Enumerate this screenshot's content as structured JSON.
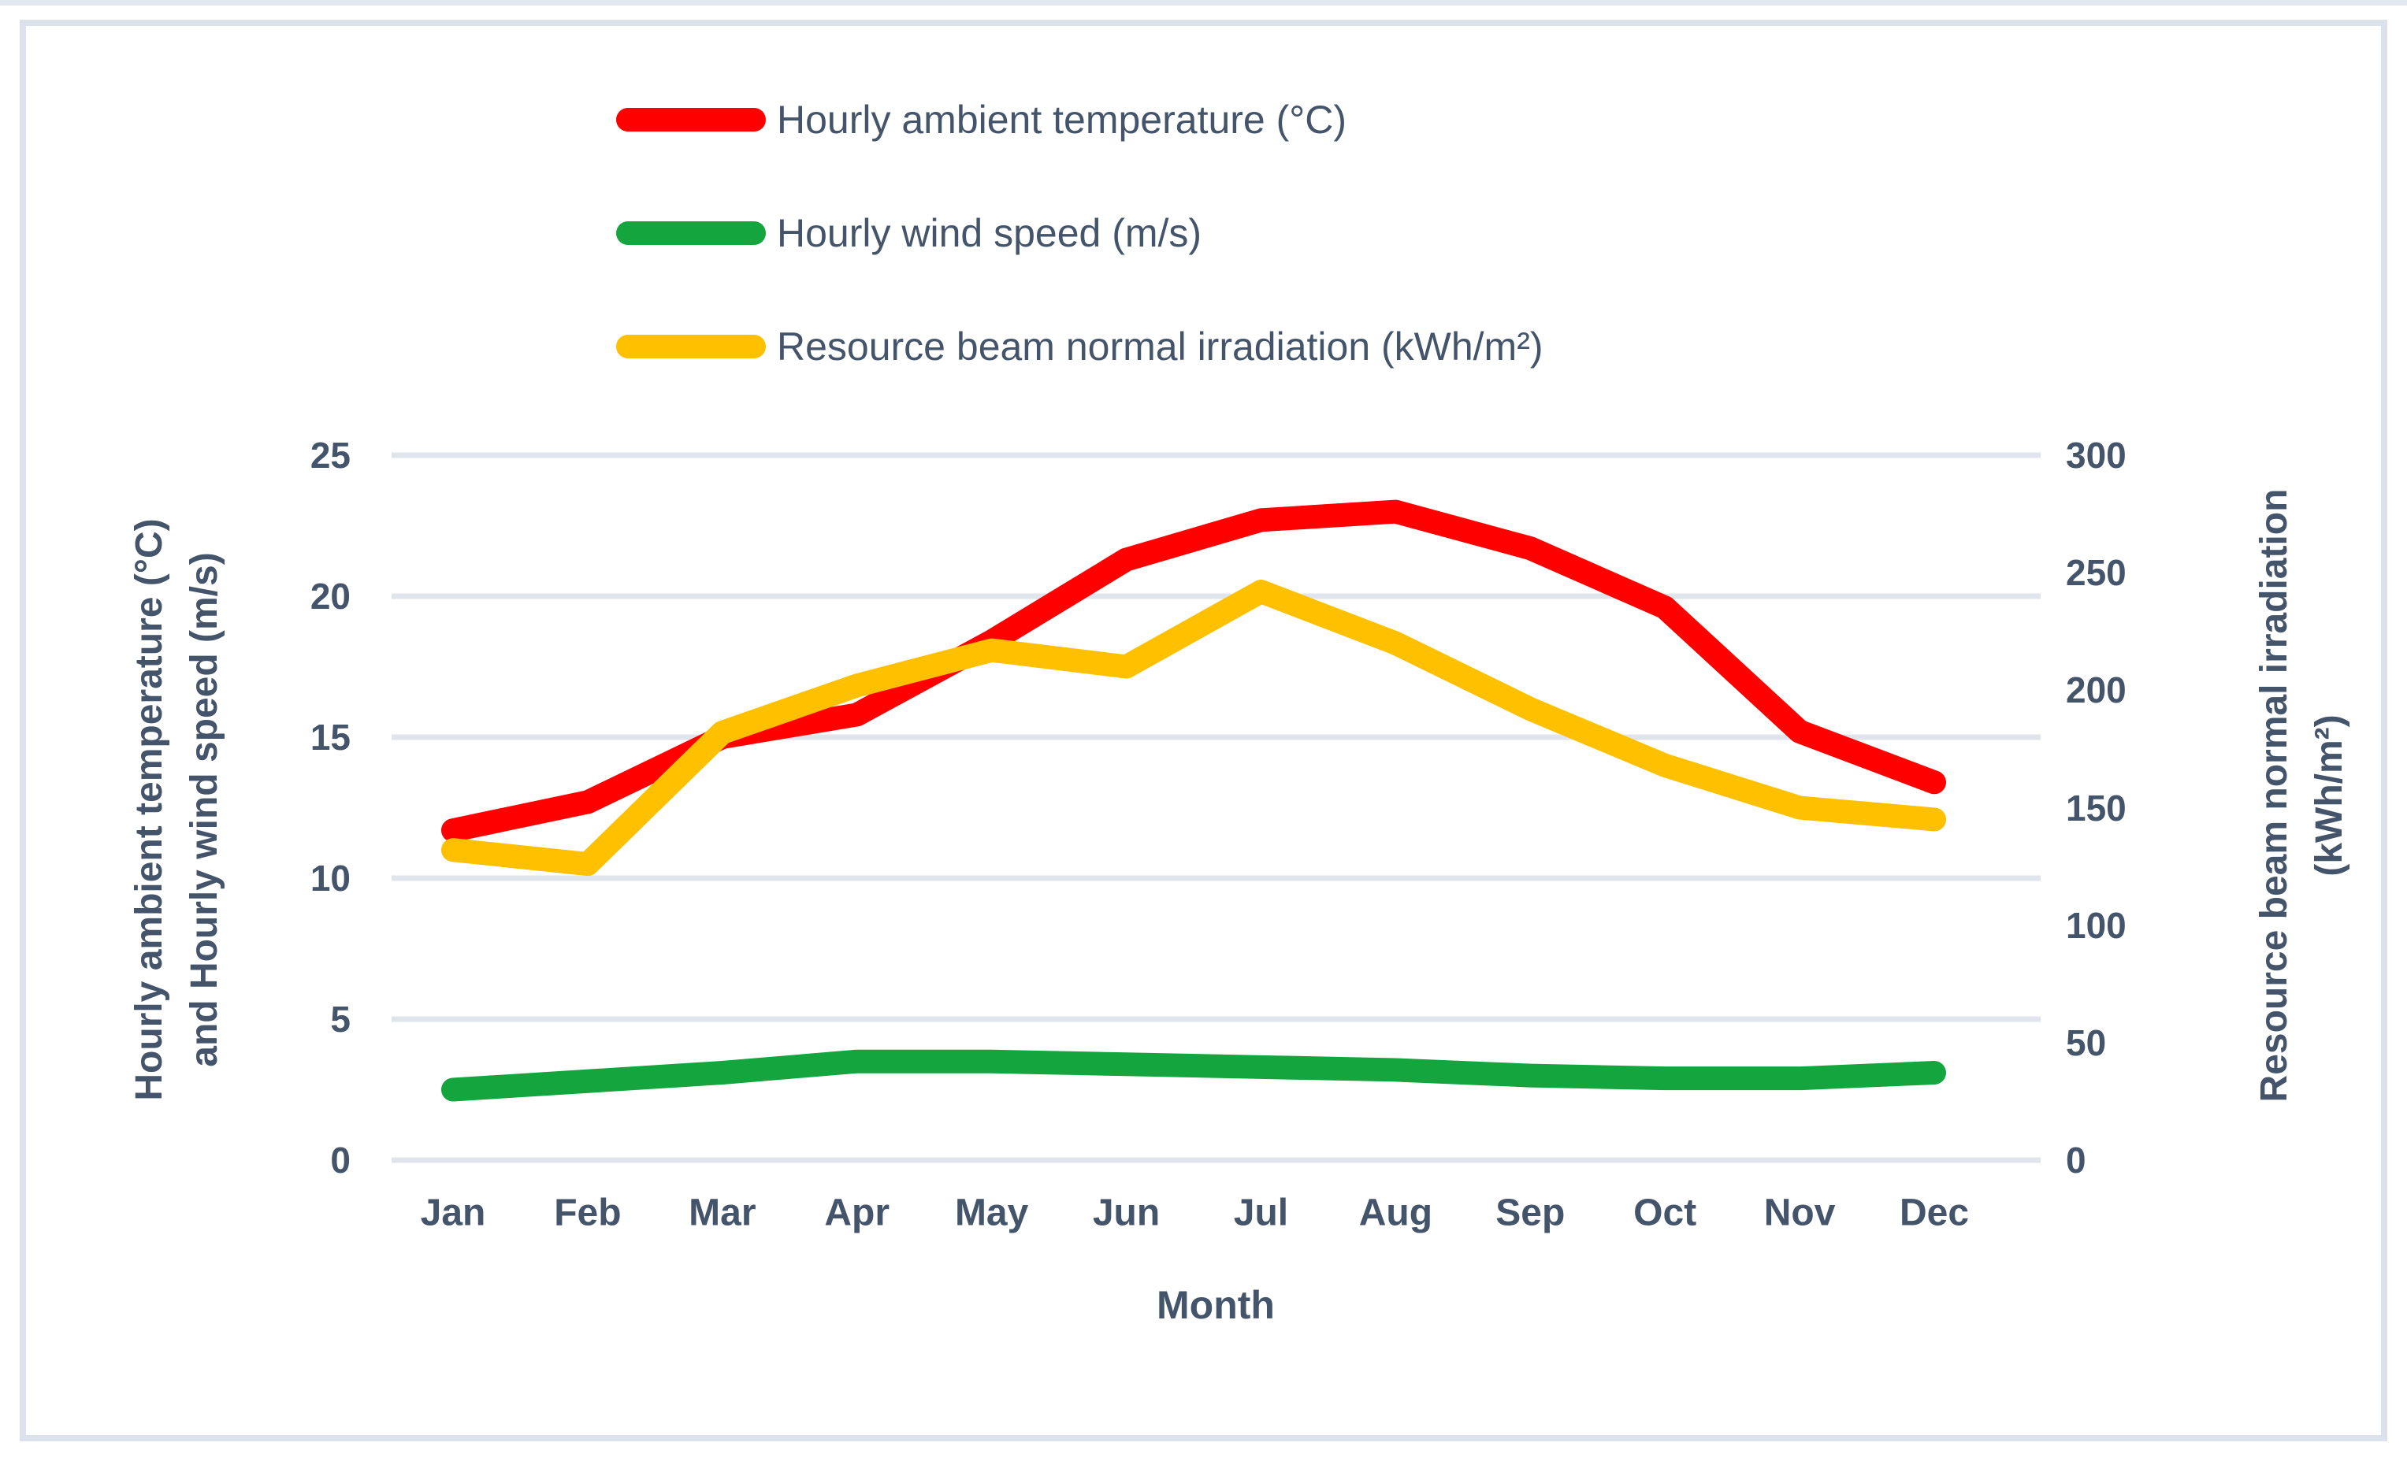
{
  "figure": {
    "background": "#FFFFFF",
    "border_color": "#DCE2EC",
    "top_edge_color": "#E3E7EF"
  },
  "colors": {
    "text": "#44546A",
    "gridline": "#E0E4EC",
    "temperature_red": "#FF0000",
    "wind_green": "#14A53E",
    "irradiation_gold": "#FFC000"
  },
  "legend": {
    "items": [
      {
        "label": "Hourly ambient temperature (°C)"
      },
      {
        "label": "Hourly wind speed (m/s)"
      },
      {
        "label": "Resource beam normal irradiation (kWh/m²)"
      }
    ]
  },
  "chart_data": {
    "type": "line",
    "title": "",
    "categories": [
      "Jan",
      "Feb",
      "Mar",
      "Apr",
      "May",
      "Jun",
      "Jul",
      "Aug",
      "Sep",
      "Oct",
      "Nov",
      "Dec"
    ],
    "series": [
      {
        "name": "Hourly ambient temperature (°C)",
        "axis": "left",
        "color": "#FF0000",
        "values": [
          11.7,
          12.7,
          15.0,
          15.8,
          18.4,
          21.3,
          22.7,
          23.0,
          21.7,
          19.6,
          15.2,
          13.4
        ]
      },
      {
        "name": "Hourly wind speed (m/s)",
        "axis": "left",
        "color": "#14A53E",
        "values": [
          2.5,
          2.8,
          3.1,
          3.5,
          3.5,
          3.4,
          3.3,
          3.2,
          3.0,
          2.9,
          2.9,
          3.1
        ]
      },
      {
        "name": "Resource beam normal irradiation (kWh/m²)",
        "axis": "right",
        "color": "#FFC000",
        "values": [
          132,
          126,
          182,
          202,
          217,
          210,
          242,
          220,
          192,
          168,
          150,
          145
        ]
      }
    ],
    "left_axis": {
      "title_line1": "Hourly ambient temperature (°C)",
      "title_line2": "and Hourly wind speed (m/s)",
      "min": 0,
      "max": 25,
      "ticks": [
        0,
        5,
        10,
        15,
        20,
        25
      ]
    },
    "right_axis": {
      "title_line1": "Resource beam normal irradiation",
      "title_line2": "(kWh/m²)",
      "min": 0,
      "max": 300,
      "ticks": [
        0,
        50,
        100,
        150,
        200,
        250,
        300
      ]
    },
    "x_axis": {
      "title": "Month"
    },
    "grid": true,
    "legend_position": "top"
  }
}
